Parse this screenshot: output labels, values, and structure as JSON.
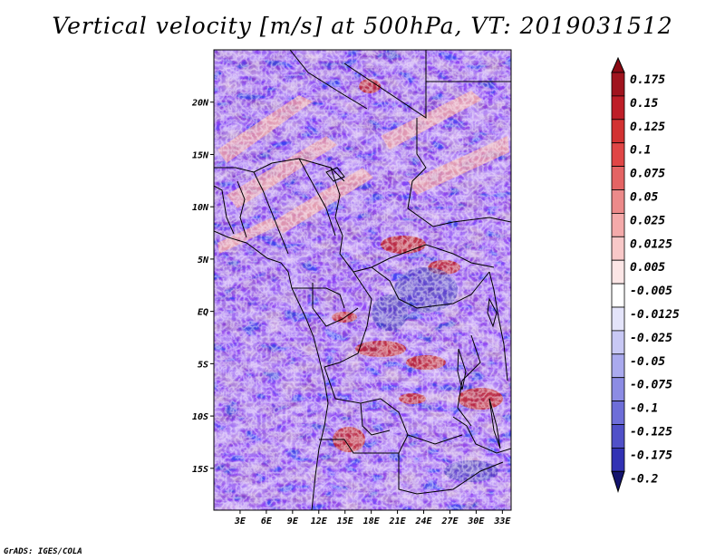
{
  "title": "Vertical velocity [m/s] at 500hPa, VT: 2019031512",
  "credit": "GrADS: IGES/COLA",
  "map": {
    "variable": "Vertical velocity",
    "units": "m/s",
    "level": "500hPa",
    "valid_time": "2019031512",
    "lon_range": [
      0,
      34
    ],
    "lat_range": [
      -19,
      25
    ],
    "lat_labels": [
      {
        "lat": 20,
        "text": "20N"
      },
      {
        "lat": 15,
        "text": "15N"
      },
      {
        "lat": 10,
        "text": "10N"
      },
      {
        "lat": 5,
        "text": "5N"
      },
      {
        "lat": 0,
        "text": "EQ"
      },
      {
        "lat": -5,
        "text": "5S"
      },
      {
        "lat": -10,
        "text": "10S"
      },
      {
        "lat": -15,
        "text": "15S"
      }
    ],
    "lon_labels": [
      {
        "lon": 3,
        "text": "3E"
      },
      {
        "lon": 6,
        "text": "6E"
      },
      {
        "lon": 9,
        "text": "9E"
      },
      {
        "lon": 12,
        "text": "12E"
      },
      {
        "lon": 15,
        "text": "15E"
      },
      {
        "lon": 18,
        "text": "18E"
      },
      {
        "lon": 21,
        "text": "21E"
      },
      {
        "lon": 24,
        "text": "24E"
      },
      {
        "lon": 27,
        "text": "27E"
      },
      {
        "lon": 30,
        "text": "30E"
      },
      {
        "lon": 33,
        "text": "33E"
      }
    ]
  },
  "colorbar": {
    "levels": [
      {
        "label": "0.175",
        "color": "#a0141e"
      },
      {
        "label": "0.15",
        "color": "#be1e28"
      },
      {
        "label": "0.125",
        "color": "#d23232"
      },
      {
        "label": "0.1",
        "color": "#e04646"
      },
      {
        "label": "0.075",
        "color": "#e46464"
      },
      {
        "label": "0.05",
        "color": "#ec8a8a"
      },
      {
        "label": "0.025",
        "color": "#f4aaaa"
      },
      {
        "label": "0.0125",
        "color": "#f8c8c8"
      },
      {
        "label": "0.005",
        "color": "#fce6e6"
      },
      {
        "label": "-0.005",
        "color": "#ffffff"
      },
      {
        "label": "-0.0125",
        "color": "#e4e4fa"
      },
      {
        "label": "-0.025",
        "color": "#c8c8f4"
      },
      {
        "label": "-0.05",
        "color": "#aaaaee"
      },
      {
        "label": "-0.075",
        "color": "#8c8ce4"
      },
      {
        "label": "-0.1",
        "color": "#6e6ed8"
      },
      {
        "label": "-0.125",
        "color": "#5050c8"
      },
      {
        "label": "-0.175",
        "color": "#3232b4"
      },
      {
        "label": "-0.2",
        "color": "#1e1e96"
      }
    ],
    "top_color": "#8c0a14",
    "bottom_color": "#14146e"
  }
}
